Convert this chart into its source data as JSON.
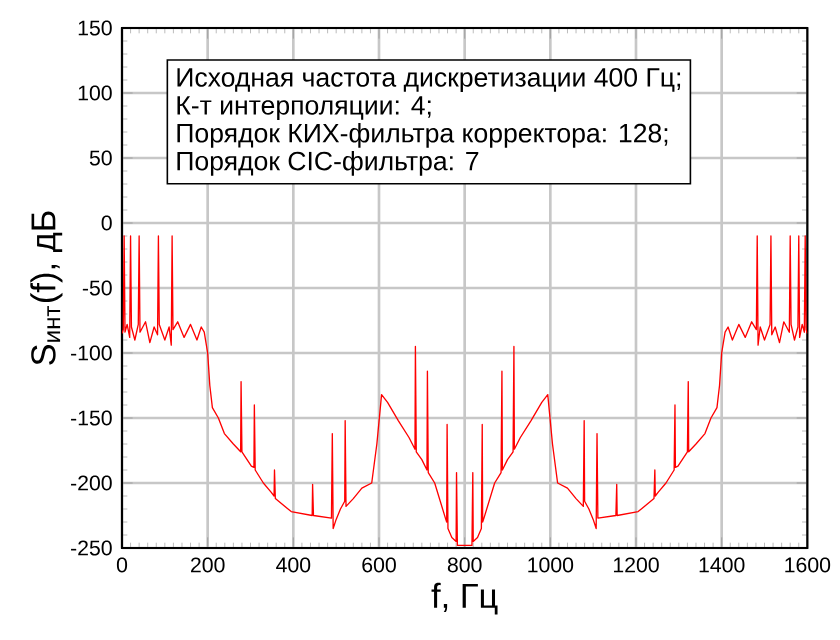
{
  "chart_data": {
    "type": "line",
    "xlabel": "f, Гц",
    "ylabel": "S$_{инт}$(f), дБ",
    "annotations": [
      "Исходная частота дискретизации 400 Гц;",
      "К-т интерполяции: 4;",
      "Порядок КИХ-фильтра корректора: 128;",
      "Порядок CIC-фильтра: 7"
    ],
    "xlim": [
      0,
      1600
    ],
    "ylim": [
      -250,
      150
    ],
    "xticks": [
      0,
      200,
      400,
      600,
      800,
      1000,
      1200,
      1400,
      1600
    ],
    "yticks": [
      -250,
      -200,
      -150,
      -100,
      -50,
      0,
      50,
      100,
      150
    ],
    "grid": true,
    "marker": "none",
    "line_style": "solid",
    "series": [
      {
        "color": "#ff0000",
        "x": [
          0,
          3,
          5,
          7,
          12,
          18,
          20,
          22,
          30,
          38,
          40,
          42,
          55,
          65,
          75,
          83,
          85,
          87,
          100,
          110,
          115,
          117,
          119,
          130,
          145,
          160,
          175,
          185,
          192,
          200,
          205,
          211,
          225,
          239,
          260,
          277,
          278,
          280,
          302,
          308,
          309,
          311,
          330,
          348,
          355,
          356,
          358,
          395,
          444,
          445,
          447,
          489,
          491,
          493,
          500,
          510,
          520,
          521,
          523,
          540,
          560,
          583,
          595,
          606,
          620,
          645,
          670,
          684,
          685,
          687,
          700,
          712,
          713,
          715,
          730,
          755,
          758,
          759,
          761,
          770,
          780,
          781,
          783,
          800,
          817,
          819,
          820,
          830,
          839,
          841,
          842,
          845,
          870,
          885,
          887,
          888,
          900,
          913,
          915,
          916,
          930,
          955,
          980,
          994,
          1005,
          1017,
          1040,
          1060,
          1077,
          1079,
          1080,
          1090,
          1100,
          1107,
          1109,
          1111,
          1153,
          1155,
          1156,
          1205,
          1242,
          1244,
          1245,
          1252,
          1270,
          1289,
          1291,
          1292,
          1298,
          1320,
          1322,
          1323,
          1340,
          1361,
          1375,
          1389,
          1395,
          1400,
          1408,
          1415,
          1425,
          1440,
          1455,
          1470,
          1481,
          1483,
          1485,
          1490,
          1500,
          1513,
          1515,
          1517,
          1525,
          1535,
          1545,
          1558,
          1560,
          1562,
          1570,
          1578,
          1580,
          1582,
          1588,
          1593,
          1595,
          1597,
          1600
        ],
        "values": [
          -85,
          -82,
          -10,
          -84,
          -78,
          -88,
          -10,
          -80,
          -90,
          -78,
          -10,
          -84,
          -76,
          -92,
          -80,
          -86,
          -10,
          -78,
          -90,
          -80,
          -94,
          -10,
          -82,
          -76,
          -88,
          -78,
          -90,
          -80,
          -84,
          -100,
          -125,
          -142,
          -150,
          -162,
          -170,
          -176,
          -122,
          -176,
          -187,
          -188,
          -140,
          -190,
          -200,
          -207,
          -210,
          -190,
          -212,
          -222,
          -225,
          -201,
          -225,
          -227,
          -162,
          -235,
          -228,
          -220,
          -214,
          -152,
          -218,
          -212,
          -204,
          -200,
          -170,
          -132,
          -138,
          -152,
          -165,
          -174,
          -95,
          -176,
          -182,
          -190,
          -114,
          -192,
          -200,
          -227,
          -230,
          -155,
          -235,
          -242,
          -245,
          -192,
          -248,
          -248,
          -248,
          -192,
          -245,
          -242,
          -235,
          -155,
          -230,
          -227,
          -200,
          -192,
          -114,
          -190,
          -182,
          -176,
          -95,
          -174,
          -165,
          -152,
          -138,
          -132,
          -170,
          -200,
          -204,
          -212,
          -218,
          -152,
          -214,
          -220,
          -228,
          -235,
          -162,
          -227,
          -225,
          -201,
          -225,
          -222,
          -212,
          -190,
          -210,
          -207,
          -200,
          -190,
          -140,
          -188,
          -187,
          -176,
          -122,
          -176,
          -170,
          -162,
          -150,
          -142,
          -125,
          -100,
          -84,
          -80,
          -90,
          -78,
          -88,
          -76,
          -82,
          -10,
          -94,
          -80,
          -90,
          -78,
          -10,
          -86,
          -80,
          -92,
          -76,
          -84,
          -10,
          -78,
          -90,
          -80,
          -10,
          -88,
          -78,
          -84,
          -10,
          -82,
          -85
        ]
      }
    ]
  }
}
